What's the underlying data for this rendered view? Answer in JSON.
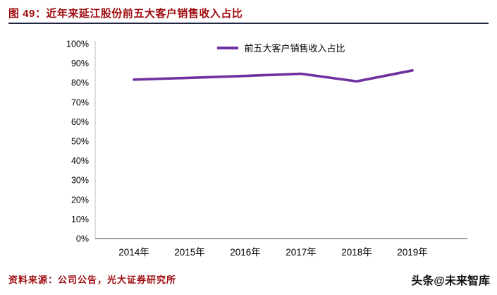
{
  "header": {
    "figure_title": "图 49：近年来延江股份前五大客户销售收入占比"
  },
  "footer": {
    "source": "资料来源：公司公告，光大证券研究所",
    "watermark": "头条@未来智库"
  },
  "colors": {
    "title_red": "#9e0b0f",
    "header_rule": "#1f2642",
    "series_line": "#7030a0",
    "axis_light": "#bfbfbf",
    "axis_dark": "#7f7f7f",
    "tick_text": "#000000"
  },
  "chart_data": {
    "type": "line",
    "categories": [
      "2014年",
      "2015年",
      "2016年",
      "2017年",
      "2018年",
      "2019年"
    ],
    "series": [
      {
        "name": "前五大客户销售收入占比",
        "color": "#7030a0",
        "values": [
          81.6,
          82.5,
          83.5,
          84.6,
          80.7,
          86.3
        ]
      }
    ],
    "title": "",
    "xlabel": "",
    "ylabel": "",
    "ylim": [
      0,
      100
    ],
    "ytick_step": 10,
    "ytick_format": "percent",
    "grid": false,
    "legend_position": "top-center"
  }
}
